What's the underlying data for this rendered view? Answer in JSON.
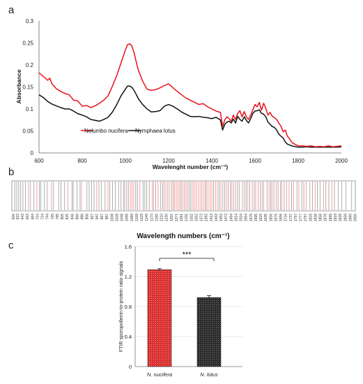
{
  "panels": {
    "a": "a",
    "b": "b",
    "c": "c"
  },
  "chart_data": [
    {
      "type": "line",
      "panel": "a",
      "xlabel": "Wavelenght number (cm⁻¹)",
      "ylabel": "Absorbance",
      "xlim": [
        600,
        2000
      ],
      "ylim": [
        0,
        0.3
      ],
      "xticks": [
        "600",
        "800",
        "1000",
        "1200",
        "1400",
        "1600",
        "1800",
        "2000"
      ],
      "yticks": [
        "0",
        "0.05",
        "0.1",
        "0.15",
        "0.2",
        "0.25",
        "0.3"
      ],
      "legend_position": "bottom-left",
      "series": [
        {
          "name": "Nelumbo nucifera",
          "color": "#e8111a",
          "x": [
            600,
            620,
            640,
            650,
            660,
            680,
            700,
            720,
            740,
            760,
            780,
            800,
            820,
            840,
            860,
            880,
            900,
            920,
            940,
            960,
            980,
            1000,
            1010,
            1020,
            1030,
            1040,
            1050,
            1060,
            1080,
            1100,
            1120,
            1140,
            1160,
            1180,
            1200,
            1220,
            1240,
            1260,
            1280,
            1300,
            1320,
            1340,
            1360,
            1380,
            1400,
            1420,
            1440,
            1450,
            1460,
            1470,
            1480,
            1490,
            1500,
            1510,
            1520,
            1530,
            1540,
            1550,
            1560,
            1570,
            1580,
            1590,
            1600,
            1610,
            1620,
            1630,
            1640,
            1650,
            1660,
            1670,
            1680,
            1690,
            1700,
            1710,
            1720,
            1730,
            1740,
            1750,
            1760,
            1770,
            1780,
            1800,
            1820,
            1840,
            1860,
            1880,
            1900,
            1920,
            1940,
            1960,
            1980,
            2000
          ],
          "y": [
            0.182,
            0.174,
            0.165,
            0.17,
            0.157,
            0.146,
            0.14,
            0.135,
            0.132,
            0.12,
            0.118,
            0.106,
            0.108,
            0.103,
            0.107,
            0.113,
            0.12,
            0.13,
            0.152,
            0.176,
            0.205,
            0.234,
            0.246,
            0.248,
            0.243,
            0.228,
            0.207,
            0.188,
            0.163,
            0.145,
            0.142,
            0.144,
            0.148,
            0.153,
            0.157,
            0.148,
            0.14,
            0.132,
            0.125,
            0.12,
            0.115,
            0.11,
            0.112,
            0.105,
            0.1,
            0.095,
            0.092,
            0.06,
            0.075,
            0.082,
            0.078,
            0.072,
            0.086,
            0.076,
            0.09,
            0.096,
            0.082,
            0.094,
            0.082,
            0.076,
            0.086,
            0.098,
            0.11,
            0.105,
            0.115,
            0.097,
            0.113,
            0.101,
            0.086,
            0.092,
            0.083,
            0.08,
            0.076,
            0.068,
            0.061,
            0.048,
            0.052,
            0.038,
            0.032,
            0.024,
            0.021,
            0.016,
            0.016,
            0.015,
            0.016,
            0.014,
            0.015,
            0.014,
            0.016,
            0.014,
            0.015,
            0.016
          ]
        },
        {
          "name": "Nymphaea lotus",
          "color": "#111111",
          "x": [
            600,
            620,
            640,
            660,
            680,
            700,
            720,
            740,
            760,
            780,
            800,
            820,
            840,
            860,
            880,
            900,
            920,
            940,
            960,
            980,
            1000,
            1010,
            1020,
            1030,
            1040,
            1050,
            1060,
            1080,
            1100,
            1120,
            1140,
            1160,
            1180,
            1200,
            1220,
            1240,
            1260,
            1280,
            1300,
            1320,
            1340,
            1360,
            1380,
            1400,
            1420,
            1440,
            1450,
            1460,
            1470,
            1480,
            1490,
            1500,
            1510,
            1520,
            1530,
            1540,
            1550,
            1560,
            1570,
            1580,
            1590,
            1600,
            1610,
            1620,
            1630,
            1640,
            1650,
            1660,
            1670,
            1680,
            1690,
            1700,
            1710,
            1720,
            1730,
            1740,
            1750,
            1760,
            1770,
            1780,
            1800,
            1820,
            1840,
            1860,
            1880,
            1900,
            1920,
            1940,
            1960,
            1980,
            2000
          ],
          "y": [
            0.132,
            0.126,
            0.117,
            0.111,
            0.107,
            0.103,
            0.1,
            0.1,
            0.095,
            0.089,
            0.086,
            0.082,
            0.076,
            0.074,
            0.072,
            0.076,
            0.081,
            0.093,
            0.11,
            0.13,
            0.145,
            0.152,
            0.152,
            0.149,
            0.142,
            0.133,
            0.123,
            0.11,
            0.1,
            0.093,
            0.094,
            0.096,
            0.106,
            0.11,
            0.106,
            0.1,
            0.093,
            0.088,
            0.083,
            0.082,
            0.083,
            0.081,
            0.08,
            0.078,
            0.081,
            0.075,
            0.052,
            0.065,
            0.07,
            0.072,
            0.068,
            0.077,
            0.068,
            0.083,
            0.076,
            0.072,
            0.082,
            0.074,
            0.068,
            0.078,
            0.09,
            0.095,
            0.096,
            0.098,
            0.09,
            0.088,
            0.082,
            0.07,
            0.065,
            0.06,
            0.058,
            0.052,
            0.043,
            0.038,
            0.034,
            0.025,
            0.02,
            0.018,
            0.016,
            0.015,
            0.013,
            0.013,
            0.014,
            0.013,
            0.013,
            0.013,
            0.013,
            0.013,
            0.013,
            0.013,
            0.014
          ]
        }
      ]
    },
    {
      "type": "line",
      "panel": "b",
      "xlabel": "Wavelength numbers (cm⁻¹)",
      "xlim": [
        600,
        2000
      ],
      "tick_labels": [
        "606",
        "623",
        "643",
        "663",
        "684",
        "704",
        "724",
        "744",
        "765",
        "785",
        "805",
        "825",
        "846",
        "866",
        "886",
        "906",
        "927",
        "947",
        "967",
        "987",
        "1008",
        "1028",
        "1048",
        "1068",
        "1089",
        "1109",
        "1129",
        "1149",
        "1170",
        "1190",
        "1210",
        "1230",
        "1251",
        "1271",
        "1291",
        "1311",
        "1332",
        "1352",
        "1372",
        "1392",
        "1413",
        "1433",
        "1453",
        "1473",
        "1494",
        "1514",
        "1534",
        "1554",
        "1575",
        "1595",
        "1615",
        "1635",
        "1656",
        "1676",
        "1696",
        "1716",
        "1737",
        "1757",
        "1777",
        "1797",
        "1818",
        "1838",
        "1858",
        "1878",
        "1899",
        "1919",
        "1939",
        "1959",
        "1980",
        "2000"
      ],
      "series": [
        {
          "name": "",
          "color": "#ee8a8a",
          "x": [
            668,
            702,
            762,
            828,
            884,
            946,
            992,
            1060,
            1083,
            1090,
            1097,
            1122,
            1172,
            1178,
            1196,
            1221,
            1228,
            1244,
            1252,
            1263,
            1270,
            1277,
            1284,
            1296,
            1303,
            1317,
            1338,
            1344,
            1351,
            1359,
            1367,
            1374,
            1381,
            1393,
            1400,
            1408,
            1415,
            1430,
            1438,
            1452,
            1475,
            1482,
            1505,
            1512,
            1540,
            1562,
            1580,
            1594,
            1604,
            1626,
            1648,
            1660,
            1678,
            1700,
            1720,
            1730,
            1748,
            1770,
            1800,
            1836,
            1870,
            1905
          ]
        },
        {
          "name": "",
          "color": "#9a9a9a",
          "x": [
            612,
            620,
            628,
            636,
            645,
            655,
            676,
            690,
            712,
            718,
            733,
            744,
            770,
            791,
            800,
            815,
            845,
            850,
            866,
            878,
            906,
            915,
            925,
            935,
            955,
            965,
            980,
            999,
            1010,
            1022,
            1035,
            1045,
            1055,
            1068,
            1075,
            1105,
            1112,
            1135,
            1142,
            1150,
            1160,
            1186,
            1207,
            1215,
            1236,
            1258,
            1290,
            1310,
            1324,
            1330,
            1388,
            1422,
            1445,
            1460,
            1468,
            1490,
            1497,
            1520,
            1528,
            1548,
            1555,
            1570,
            1588,
            1612,
            1620,
            1640,
            1655,
            1668,
            1685,
            1695,
            1710,
            1740,
            1762,
            1782,
            1790,
            1815,
            1825,
            1845,
            1856,
            1880,
            1892,
            1915,
            1930,
            1945,
            1962,
            1985
          ]
        }
      ]
    },
    {
      "type": "bar",
      "panel": "c",
      "categories": [
        "N. nucifera",
        "N. lotus"
      ],
      "values": [
        1.29,
        0.92
      ],
      "errors": [
        0.015,
        0.025
      ],
      "colors": [
        "#d92f2f",
        "#2b2b2b"
      ],
      "ylabel": "FTIR sporopollenin-to-protein ratio signals",
      "ylim": [
        0,
        1.6
      ],
      "yticks": [
        "0",
        "0.4",
        "0.8",
        "1.2",
        "1.6"
      ],
      "significance": "***",
      "grid": true
    }
  ]
}
